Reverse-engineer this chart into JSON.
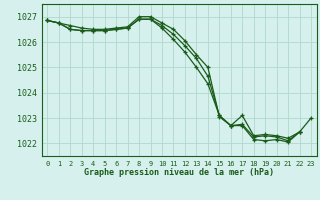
{
  "title": "Graphe pression niveau de la mer (hPa)",
  "bg_color": "#d6f0ee",
  "grid_color": "#b0d8cc",
  "line_color": "#1a5c1a",
  "marker_color": "#1a5c1a",
  "xlim": [
    -0.5,
    23.5
  ],
  "ylim": [
    1021.5,
    1027.5
  ],
  "yticks": [
    1022,
    1023,
    1024,
    1025,
    1026,
    1027
  ],
  "xticks": [
    0,
    1,
    2,
    3,
    4,
    5,
    6,
    7,
    8,
    9,
    10,
    11,
    12,
    13,
    14,
    15,
    16,
    17,
    18,
    19,
    20,
    21,
    22,
    23
  ],
  "series": [
    [
      1026.85,
      1026.75,
      1026.65,
      1026.55,
      1026.5,
      1026.5,
      1026.55,
      1026.6,
      1027.0,
      1027.0,
      1026.75,
      1026.5,
      1026.05,
      1025.5,
      1025.0,
      1023.05,
      1022.7,
      1023.1,
      1022.3,
      1022.35,
      1022.3,
      1022.2,
      1022.45,
      null
    ],
    [
      1026.85,
      1026.75,
      1026.5,
      1026.45,
      1026.45,
      1026.45,
      1026.5,
      1026.55,
      1026.9,
      1026.9,
      1026.65,
      1026.3,
      1025.85,
      1025.35,
      1024.65,
      1023.1,
      1022.7,
      1022.75,
      1022.25,
      1022.3,
      1022.25,
      1022.1,
      1022.45,
      null
    ],
    [
      1026.85,
      1026.75,
      1026.5,
      1026.45,
      1026.45,
      1026.45,
      1026.5,
      1026.55,
      1026.9,
      1026.9,
      1026.55,
      1026.1,
      1025.6,
      1025.0,
      1024.35,
      1023.1,
      1022.7,
      1022.7,
      1022.15,
      1022.1,
      1022.15,
      1022.05,
      1022.45,
      1023.0
    ]
  ]
}
